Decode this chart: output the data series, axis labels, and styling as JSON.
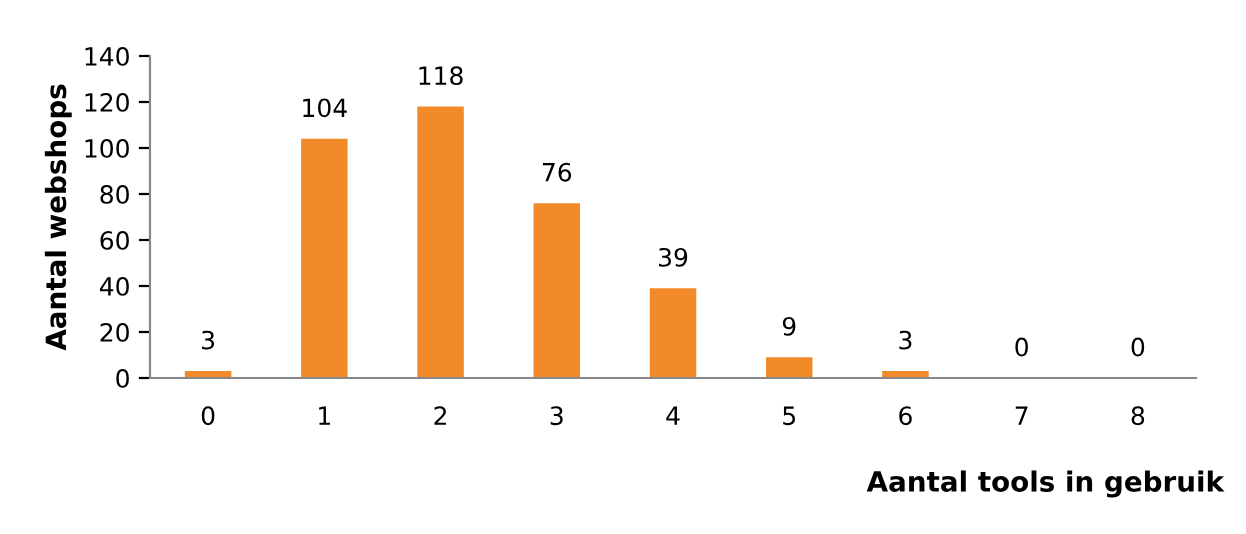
{
  "chart_data": {
    "type": "bar",
    "categories": [
      "0",
      "1",
      "2",
      "3",
      "4",
      "5",
      "6",
      "7",
      "8"
    ],
    "values": [
      3,
      104,
      118,
      76,
      39,
      9,
      3,
      0,
      0
    ],
    "color": "#f28a2a",
    "ylim": [
      0,
      140
    ],
    "yticks": [
      0,
      20,
      40,
      60,
      80,
      100,
      120,
      140
    ],
    "ylabel": "Aantal webshops",
    "xlabel": "Aantal tools in gebruik",
    "data_labels": true,
    "grid": false,
    "legend": false
  }
}
